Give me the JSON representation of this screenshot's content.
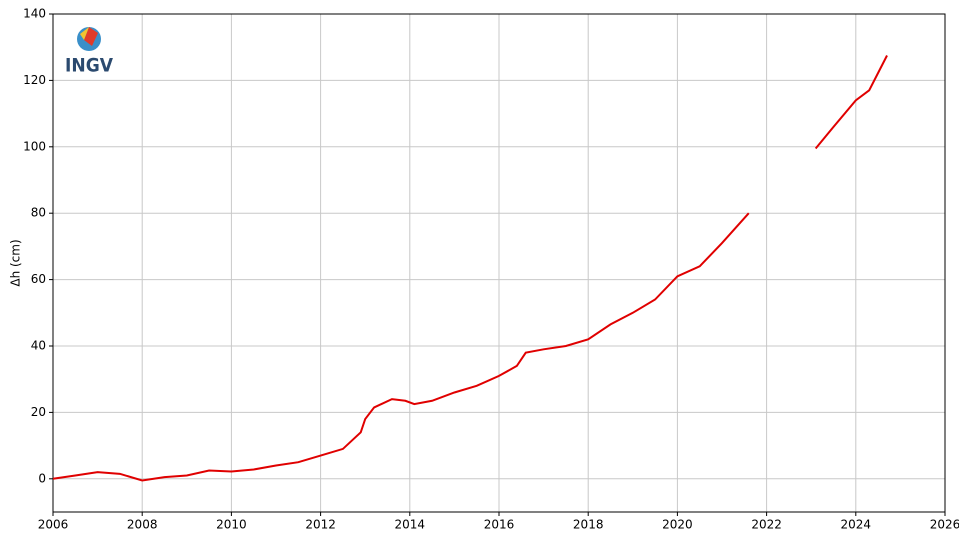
{
  "chart_data": {
    "type": "line",
    "logo": "INGV",
    "y_label": "Δh (cm)",
    "x": [
      2006.0,
      2006.5,
      2007.0,
      2007.5,
      2008.0,
      2008.5,
      2009.0,
      2009.5,
      2010.0,
      2010.5,
      2011.0,
      2011.5,
      2012.0,
      2012.5,
      2012.9,
      2013.0,
      2013.2,
      2013.6,
      2013.9,
      2014.1,
      2014.5,
      2015.0,
      2015.5,
      2016.0,
      2016.4,
      2016.6,
      2017.0,
      2017.5,
      2018.0,
      2018.5,
      2019.0,
      2019.5,
      2020.0,
      2020.5,
      2021.0,
      2021.6,
      2022.3,
      2023.1,
      2023.5,
      2024.0,
      2024.3,
      2024.7
    ],
    "series": [
      {
        "color": "#e00000",
        "values": [
          0,
          1,
          2,
          1.5,
          -0.5,
          0.5,
          1,
          2.5,
          2.2,
          2.8,
          4,
          5,
          7,
          9,
          14,
          18,
          21.5,
          24,
          23.5,
          22.5,
          23.5,
          26,
          28,
          31,
          34,
          38,
          39,
          40,
          42,
          46.5,
          50,
          54,
          61,
          64,
          71,
          80,
          null,
          99.5,
          106,
          114,
          117,
          127.5
        ]
      }
    ],
    "xlim": [
      2006,
      2026
    ],
    "xticks": [
      2006,
      2008,
      2010,
      2012,
      2014,
      2016,
      2018,
      2020,
      2022,
      2024,
      2026
    ],
    "ylim": [
      -10,
      140
    ],
    "yticks": [
      0,
      20,
      40,
      60,
      80,
      100,
      120,
      140
    ],
    "grid": true
  }
}
